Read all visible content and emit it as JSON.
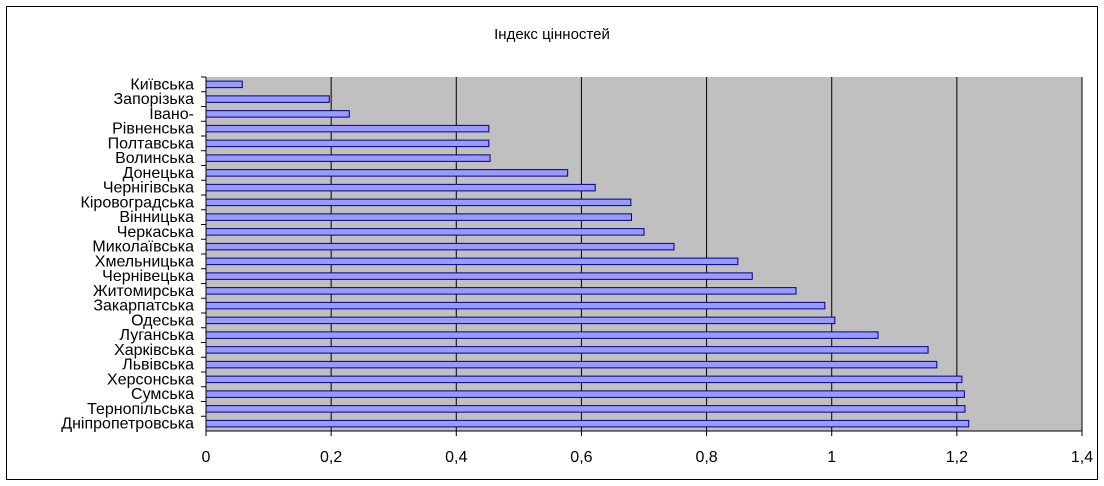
{
  "chart_data": {
    "type": "bar",
    "orientation": "horizontal",
    "title": "Індекс цінностей",
    "xlabel": "",
    "ylabel": "",
    "xlim": [
      0,
      1.4
    ],
    "x_ticks": [
      "0",
      "0,2",
      "0,4",
      "0,6",
      "0,8",
      "1",
      "1,2",
      "1,4"
    ],
    "grid": "vertical",
    "legend": "none",
    "colors": {
      "bar_fill": "#9999ff",
      "bar_stroke": "#000080",
      "plot_bg": "#c0c0c0",
      "grid": "#000000"
    },
    "categories": [
      "Київська",
      "Запорізька",
      "Івано-",
      "Рівненська",
      "Полтавська",
      "Волинська",
      "Донецька",
      "Чернігівська",
      "Кіровоградська",
      "Вінницька",
      "Черкаська",
      "Миколаївська",
      "Хмельницька",
      "Чернівецька",
      "Житомирська",
      "Закарпатська",
      "Одеська",
      "Луганська",
      "Харківська",
      "Львівська",
      "Херсонська",
      "Сумська",
      "Тернопільська",
      "Дніпропетровська"
    ],
    "values": [
      0.058,
      0.197,
      0.229,
      0.452,
      0.452,
      0.454,
      0.578,
      0.622,
      0.679,
      0.68,
      0.7,
      0.748,
      0.85,
      0.873,
      0.943,
      0.989,
      1.005,
      1.074,
      1.154,
      1.168,
      1.208,
      1.212,
      1.213,
      1.219
    ]
  }
}
